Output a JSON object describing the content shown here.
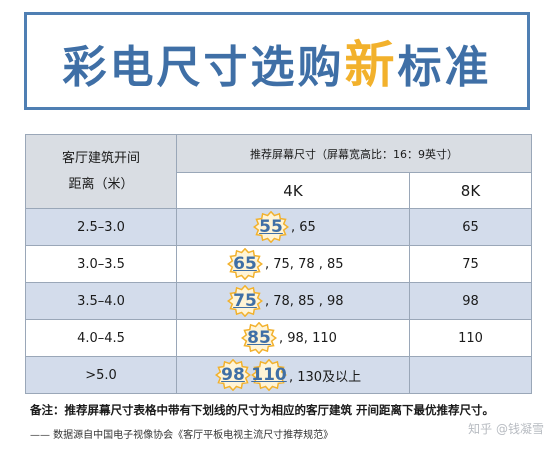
{
  "title": {
    "part1": "彩电尺寸选购",
    "accent": "新",
    "part2": "标准",
    "color": "#3f6fa6",
    "accent_color": "#f2b12c"
  },
  "table": {
    "corner_line1": "客厅建筑开间",
    "corner_line2": "距离（米）",
    "span_header": "推荐屏幕尺寸（屏幕宽高比：16：9英寸）",
    "col_4k": "4K",
    "col_8k": "8K",
    "rows": [
      {
        "distance": "2.5–3.0",
        "best": [
          "55"
        ],
        "rest": ", 65",
        "k8": "65"
      },
      {
        "distance": "3.0–3.5",
        "best": [
          "65"
        ],
        "rest": ", 75, 78 , 85",
        "k8": "75"
      },
      {
        "distance": "3.5–4.0",
        "best": [
          "75"
        ],
        "rest": ", 78, 85 , 98",
        "k8": "98"
      },
      {
        "distance": "4.0–4.5",
        "best": [
          "85"
        ],
        "rest": ", 98, 110",
        "k8": "110"
      },
      {
        "distance": ">5.0",
        "best": [
          "98",
          "110"
        ],
        "rest": ", 130及以上",
        "k8": ""
      }
    ],
    "alt_row_color": "#d3dceb",
    "header_color": "#d9dde3"
  },
  "note": "备注：推荐屏幕尺寸表格中带有下划线的尺寸为相应的客厅建筑 开间距离下最优推荐尺寸。",
  "source": "—— 数据源自中国电子视像协会《客厅平板电视主流尺寸推荐规范》",
  "watermark": "知乎 @钱凝雪"
}
